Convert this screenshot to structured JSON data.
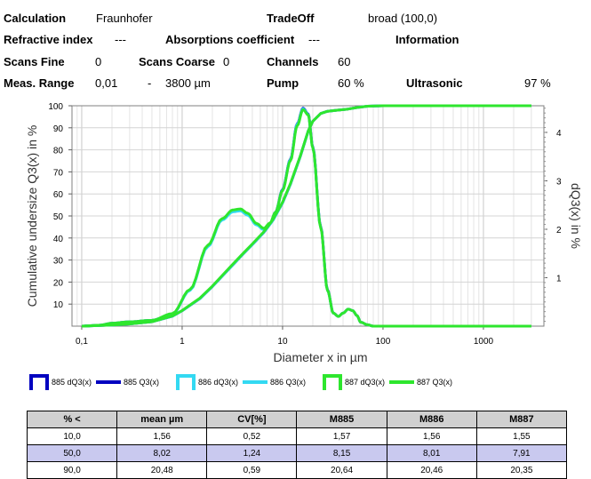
{
  "header": {
    "calculation_label": "Calculation",
    "calculation_value": "Fraunhofer",
    "tradeoff_label": "TradeOff",
    "tradeoff_value": "broad (100,0)",
    "refractive_label": "Refractive index",
    "refractive_value": "---",
    "absorption_label": "Absorptions coefficient",
    "absorption_value": "---",
    "information_label": "Information",
    "scans_fine_label": "Scans Fine",
    "scans_fine_value": "0",
    "scans_coarse_label": "Scans Coarse",
    "scans_coarse_value": "0",
    "channels_label": "Channels",
    "channels_value": "60",
    "meas_range_label": "Meas. Range",
    "meas_range_min": "0,01",
    "meas_range_sep": "-",
    "meas_range_max": "3800 µm",
    "pump_label": "Pump",
    "pump_value": "60 %",
    "ultrasonic_label": "Ultrasonic",
    "ultrasonic_value": "97 %"
  },
  "chart_data": {
    "type": "line",
    "xlabel": "Diameter x in µm",
    "ylabel": "Cumulative undersize Q3(x) in %",
    "y2label": "dQ3(x) in %",
    "xscale": "log",
    "xlim": [
      0.08,
      4000
    ],
    "ylim": [
      0,
      100
    ],
    "y2lim": [
      0,
      4.55
    ],
    "x_ticks": [
      0.1,
      1,
      10,
      100,
      1000
    ],
    "x_tick_labels": [
      "0,1",
      "1",
      "10",
      "100",
      "1000"
    ],
    "y_ticks": [
      10,
      20,
      30,
      40,
      50,
      60,
      70,
      80,
      90,
      100
    ],
    "y_tick_labels": [
      "10",
      "20",
      "30",
      "40",
      "50",
      "60",
      "70",
      "80",
      "90",
      "100"
    ],
    "y2_ticks": [
      1,
      2,
      3,
      4
    ],
    "y2_tick_labels": [
      "1",
      "2",
      "3",
      "4"
    ],
    "grid": true,
    "series": [
      {
        "name": "885 dQ3(x)",
        "axis": "right",
        "color": "#0000c0",
        "style": "step",
        "x": [
          0.1,
          0.15,
          0.2,
          0.3,
          0.5,
          0.8,
          1.2,
          1.8,
          2.5,
          3.2,
          3.8,
          4.5,
          5.5,
          6.5,
          7.5,
          8.5,
          10,
          12,
          14,
          16,
          18,
          20,
          24,
          28,
          32,
          36,
          40,
          45,
          50,
          55,
          60,
          70,
          80,
          100,
          200,
          500,
          1000,
          3000
        ],
        "y": [
          0.0,
          0.02,
          0.06,
          0.09,
          0.12,
          0.25,
          0.75,
          1.65,
          2.2,
          2.37,
          2.39,
          2.3,
          2.1,
          2.0,
          2.12,
          2.35,
          2.82,
          3.45,
          4.18,
          4.5,
          4.38,
          3.7,
          2.05,
          0.75,
          0.27,
          0.2,
          0.27,
          0.35,
          0.32,
          0.22,
          0.08,
          0.03,
          0.0,
          0.0,
          0.0,
          0.0,
          0.0,
          0.0
        ]
      },
      {
        "name": "885 Q3(x)",
        "axis": "left",
        "color": "#0000c0",
        "style": "line",
        "x": [
          0.1,
          0.2,
          0.3,
          0.5,
          0.8,
          1.0,
          1.5,
          2.0,
          3.0,
          4.0,
          5.0,
          6.5,
          8.0,
          10.0,
          12.0,
          15.0,
          18.0,
          20.0,
          24.0,
          28.0,
          35.0,
          45.0,
          55.0,
          70.0,
          100.0,
          200.0,
          500.0,
          1000.0,
          3000.0
        ],
        "y": [
          0.0,
          0.5,
          1.0,
          2.0,
          4.5,
          7.0,
          12.5,
          18.0,
          26.5,
          32.5,
          37.0,
          42.5,
          48.0,
          56.0,
          64.5,
          77.0,
          88.5,
          93.0,
          96.5,
          97.5,
          98.0,
          98.5,
          99.2,
          99.8,
          100.0,
          100.0,
          100.0,
          100.0,
          100.0
        ]
      },
      {
        "name": "886 dQ3(x)",
        "axis": "right",
        "color": "#33d9f2",
        "style": "step",
        "x": [
          0.1,
          0.15,
          0.2,
          0.3,
          0.5,
          0.8,
          1.2,
          1.8,
          2.5,
          3.2,
          3.8,
          4.5,
          5.5,
          6.5,
          7.5,
          8.5,
          10,
          12,
          14,
          16,
          18,
          20,
          24,
          28,
          32,
          36,
          40,
          45,
          50,
          55,
          60,
          70,
          80,
          100,
          200,
          500,
          1000,
          3000
        ],
        "y": [
          0.0,
          0.02,
          0.06,
          0.09,
          0.12,
          0.25,
          0.74,
          1.64,
          2.19,
          2.36,
          2.38,
          2.29,
          2.09,
          1.99,
          2.11,
          2.34,
          2.81,
          3.44,
          4.17,
          4.49,
          4.37,
          3.69,
          2.04,
          0.74,
          0.27,
          0.2,
          0.27,
          0.35,
          0.32,
          0.22,
          0.08,
          0.03,
          0.0,
          0.0,
          0.0,
          0.0,
          0.0,
          0.0
        ]
      },
      {
        "name": "886 Q3(x)",
        "axis": "left",
        "color": "#33d9f2",
        "style": "line",
        "x": [
          0.1,
          0.2,
          0.3,
          0.5,
          0.8,
          1.0,
          1.5,
          2.0,
          3.0,
          4.0,
          5.0,
          6.5,
          8.0,
          10.0,
          12.0,
          15.0,
          18.0,
          20.0,
          24.0,
          28.0,
          35.0,
          45.0,
          55.0,
          70.0,
          100.0,
          200.0,
          500.0,
          1000.0,
          3000.0
        ],
        "y": [
          0.0,
          0.5,
          1.0,
          2.0,
          4.5,
          7.0,
          12.5,
          18.0,
          26.5,
          32.5,
          37.0,
          42.5,
          48.0,
          56.0,
          64.5,
          77.0,
          88.5,
          93.0,
          96.5,
          97.5,
          98.0,
          98.5,
          99.2,
          99.8,
          100.0,
          100.0,
          100.0,
          100.0,
          100.0
        ]
      },
      {
        "name": "887 dQ3(x)",
        "axis": "right",
        "color": "#2ee62e",
        "style": "step",
        "x": [
          0.1,
          0.15,
          0.2,
          0.3,
          0.5,
          0.8,
          1.2,
          1.8,
          2.5,
          3.2,
          3.8,
          4.5,
          5.5,
          6.5,
          7.5,
          8.5,
          10,
          12,
          14,
          16,
          18,
          20,
          24,
          28,
          32,
          36,
          40,
          45,
          50,
          55,
          60,
          70,
          80,
          100,
          200,
          500,
          1000,
          3000
        ],
        "y": [
          0.0,
          0.02,
          0.06,
          0.09,
          0.12,
          0.26,
          0.76,
          1.67,
          2.22,
          2.4,
          2.42,
          2.33,
          2.12,
          2.02,
          2.13,
          2.35,
          2.8,
          3.42,
          4.14,
          4.47,
          4.36,
          3.68,
          2.03,
          0.74,
          0.27,
          0.2,
          0.27,
          0.35,
          0.32,
          0.22,
          0.08,
          0.03,
          0.0,
          0.0,
          0.0,
          0.0,
          0.0,
          0.0
        ]
      },
      {
        "name": "887 Q3(x)",
        "axis": "left",
        "color": "#2ee62e",
        "style": "line",
        "x": [
          0.1,
          0.2,
          0.3,
          0.5,
          0.8,
          1.0,
          1.5,
          2.0,
          3.0,
          4.0,
          5.0,
          6.5,
          8.0,
          10.0,
          12.0,
          15.0,
          18.0,
          20.0,
          24.0,
          28.0,
          35.0,
          45.0,
          55.0,
          70.0,
          100.0,
          200.0,
          500.0,
          1000.0,
          3000.0
        ],
        "y": [
          0.0,
          0.5,
          1.0,
          2.0,
          4.6,
          7.1,
          12.7,
          18.2,
          26.8,
          32.8,
          37.3,
          42.8,
          48.3,
          56.3,
          64.8,
          77.2,
          88.6,
          93.0,
          96.5,
          97.5,
          98.0,
          98.5,
          99.2,
          99.8,
          100.0,
          100.0,
          100.0,
          100.0,
          100.0
        ]
      }
    ]
  },
  "legend": [
    {
      "label": "885 dQ3(x)",
      "kind": "box",
      "color": "#0000c0"
    },
    {
      "label": "885 Q3(x)",
      "kind": "line",
      "color": "#0000c0"
    },
    {
      "label": "886 dQ3(x)",
      "kind": "box",
      "color": "#33d9f2"
    },
    {
      "label": "886 Q3(x)",
      "kind": "line",
      "color": "#33d9f2"
    },
    {
      "label": "887 dQ3(x)",
      "kind": "box",
      "color": "#2ee62e"
    },
    {
      "label": "887 Q3(x)",
      "kind": "line",
      "color": "#2ee62e"
    }
  ],
  "table": {
    "headers": [
      "% <",
      "mean µm",
      "CV[%]",
      "M885",
      "M886",
      "M887"
    ],
    "rows": [
      [
        "10,0",
        "1,56",
        "0,52",
        "1,57",
        "1,56",
        "1,55"
      ],
      [
        "50,0",
        "8,02",
        "1,24",
        "8,15",
        "8,01",
        "7,91"
      ],
      [
        "90,0",
        "20,48",
        "0,59",
        "20,64",
        "20,46",
        "20,35"
      ]
    ]
  }
}
